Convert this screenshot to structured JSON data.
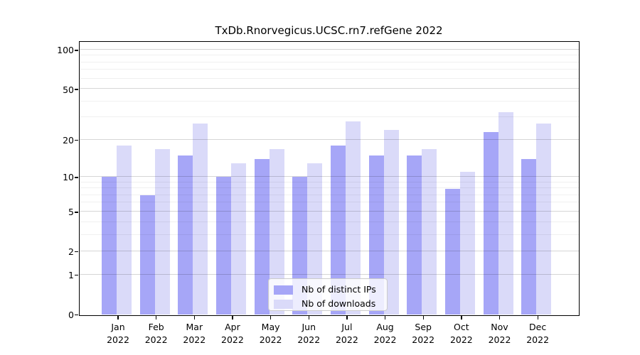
{
  "title": "TxDb.Rnorvegicus.UCSC.rn7.refGene 2022",
  "colors": {
    "distinct_ips_bar": "#a6a6f7",
    "downloads_bar": "#dadaf9",
    "grid_major": "rgba(0,0,0,0.16)",
    "grid_minor": "rgba(0,0,0,0.06)",
    "axis": "#000000",
    "legend_border": "#cccccc",
    "legend_bg": "rgba(255,255,255,0.8)"
  },
  "legend": {
    "items": [
      {
        "label": "Nb of distinct IPs",
        "series": "distinct_ips"
      },
      {
        "label": "Nb of downloads",
        "series": "downloads"
      }
    ]
  },
  "chart_data": {
    "type": "bar",
    "title": "TxDb.Rnorvegicus.UCSC.rn7.refGene 2022",
    "categories": [
      "Jan 2022",
      "Feb 2022",
      "Mar 2022",
      "Apr 2022",
      "May 2022",
      "Jun 2022",
      "Jul 2022",
      "Aug 2022",
      "Sep 2022",
      "Oct 2022",
      "Nov 2022",
      "Dec 2022"
    ],
    "series": [
      {
        "name": "Nb of distinct IPs",
        "color": "#a6a6f7",
        "values": [
          10,
          7,
          15,
          10,
          14,
          10,
          18,
          15,
          15,
          8,
          23,
          14
        ]
      },
      {
        "name": "Nb of downloads",
        "color": "#dadaf9",
        "values": [
          18,
          17,
          27,
          13,
          17,
          13,
          28,
          24,
          17,
          11,
          33,
          27
        ]
      }
    ],
    "xlabel": "",
    "ylabel": "",
    "yscale": "log1p",
    "ylim": [
      0,
      116
    ],
    "yticks": [
      0,
      1,
      2,
      5,
      10,
      20,
      50,
      100
    ],
    "yticks_minor": [
      3,
      4,
      6,
      7,
      8,
      9,
      30,
      40,
      60,
      70,
      80,
      90
    ],
    "grid": true,
    "grid_over_bars": true,
    "legend_position": "inside lower-center"
  }
}
